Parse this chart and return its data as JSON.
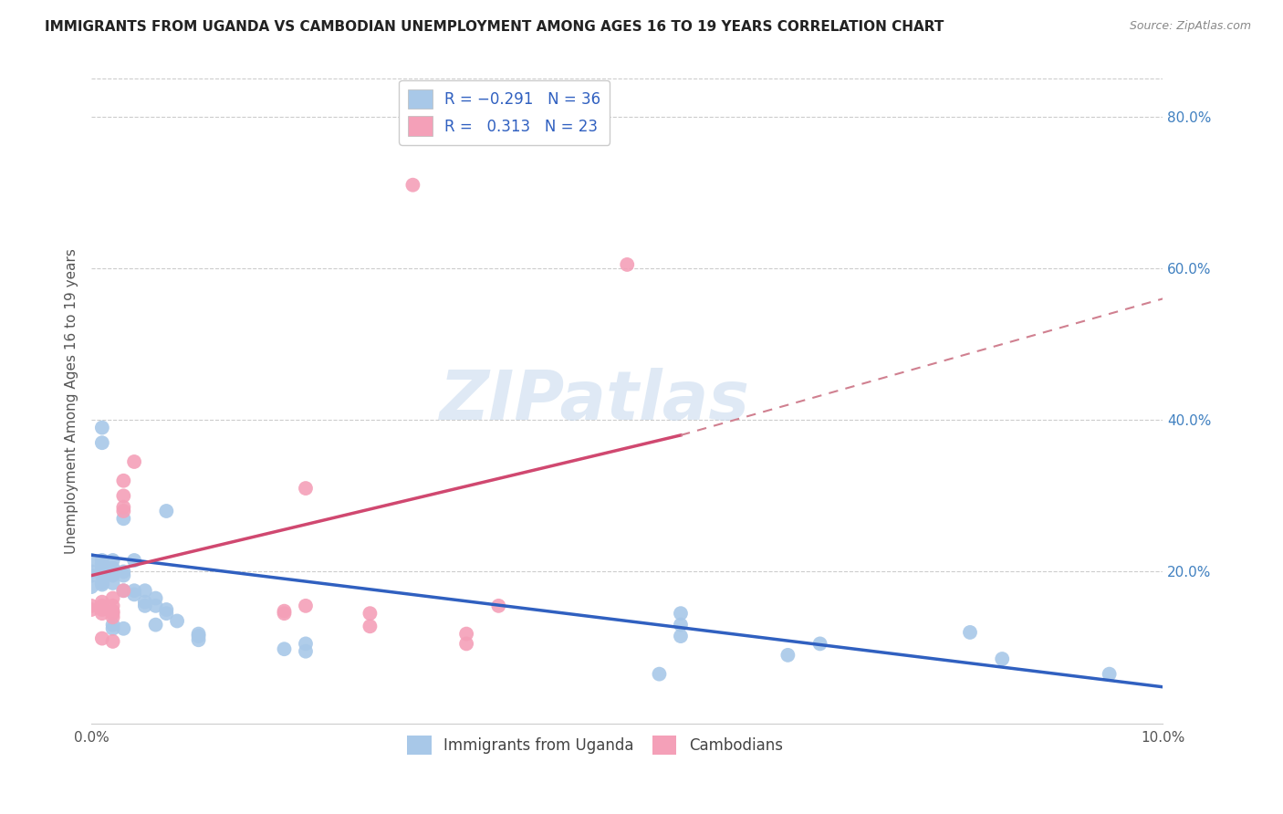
{
  "title": "IMMIGRANTS FROM UGANDA VS CAMBODIAN UNEMPLOYMENT AMONG AGES 16 TO 19 YEARS CORRELATION CHART",
  "source": "Source: ZipAtlas.com",
  "ylabel": "Unemployment Among Ages 16 to 19 years",
  "xlim": [
    0.0,
    0.1
  ],
  "ylim": [
    0.0,
    0.85
  ],
  "xticks": [
    0.0,
    0.02,
    0.04,
    0.06,
    0.08,
    0.1
  ],
  "xtick_labels": [
    "0.0%",
    "",
    "",
    "",
    "",
    "10.0%"
  ],
  "yticks_right": [
    0.2,
    0.4,
    0.6,
    0.8
  ],
  "ytick_labels_right": [
    "20.0%",
    "40.0%",
    "60.0%",
    "80.0%"
  ],
  "watermark": "ZIPatlas",
  "blue_color": "#A8C8E8",
  "pink_color": "#F4A0B8",
  "blue_line_color": "#3060C0",
  "pink_line_color": "#D04870",
  "pink_dash_color": "#D08090",
  "title_color": "#222222",
  "right_axis_color": "#4080C0",
  "grid_color": "#CCCCCC",
  "uganda_points": [
    [
      0.0,
      0.215
    ],
    [
      0.0,
      0.2
    ],
    [
      0.0,
      0.195
    ],
    [
      0.0,
      0.18
    ],
    [
      0.001,
      0.215
    ],
    [
      0.001,
      0.21
    ],
    [
      0.001,
      0.205
    ],
    [
      0.001,
      0.2
    ],
    [
      0.001,
      0.195
    ],
    [
      0.001,
      0.185
    ],
    [
      0.001,
      0.183
    ],
    [
      0.001,
      0.39
    ],
    [
      0.001,
      0.37
    ],
    [
      0.002,
      0.215
    ],
    [
      0.002,
      0.205
    ],
    [
      0.002,
      0.2
    ],
    [
      0.002,
      0.195
    ],
    [
      0.002,
      0.185
    ],
    [
      0.002,
      0.13
    ],
    [
      0.002,
      0.125
    ],
    [
      0.003,
      0.2
    ],
    [
      0.003,
      0.195
    ],
    [
      0.003,
      0.175
    ],
    [
      0.003,
      0.125
    ],
    [
      0.003,
      0.27
    ],
    [
      0.004,
      0.215
    ],
    [
      0.004,
      0.175
    ],
    [
      0.004,
      0.17
    ],
    [
      0.005,
      0.175
    ],
    [
      0.005,
      0.16
    ],
    [
      0.005,
      0.155
    ],
    [
      0.006,
      0.165
    ],
    [
      0.006,
      0.155
    ],
    [
      0.006,
      0.13
    ],
    [
      0.007,
      0.15
    ],
    [
      0.007,
      0.145
    ],
    [
      0.007,
      0.28
    ],
    [
      0.008,
      0.135
    ],
    [
      0.01,
      0.118
    ],
    [
      0.01,
      0.115
    ],
    [
      0.01,
      0.11
    ],
    [
      0.018,
      0.098
    ],
    [
      0.02,
      0.105
    ],
    [
      0.02,
      0.095
    ],
    [
      0.053,
      0.065
    ],
    [
      0.055,
      0.145
    ],
    [
      0.055,
      0.13
    ],
    [
      0.055,
      0.115
    ],
    [
      0.065,
      0.09
    ],
    [
      0.068,
      0.105
    ],
    [
      0.082,
      0.12
    ],
    [
      0.085,
      0.085
    ],
    [
      0.095,
      0.065
    ]
  ],
  "cambodian_points": [
    [
      0.0,
      0.155
    ],
    [
      0.0,
      0.15
    ],
    [
      0.001,
      0.16
    ],
    [
      0.001,
      0.155
    ],
    [
      0.001,
      0.15
    ],
    [
      0.001,
      0.145
    ],
    [
      0.001,
      0.112
    ],
    [
      0.002,
      0.165
    ],
    [
      0.002,
      0.155
    ],
    [
      0.002,
      0.148
    ],
    [
      0.002,
      0.145
    ],
    [
      0.002,
      0.14
    ],
    [
      0.002,
      0.108
    ],
    [
      0.003,
      0.32
    ],
    [
      0.003,
      0.3
    ],
    [
      0.003,
      0.285
    ],
    [
      0.003,
      0.28
    ],
    [
      0.003,
      0.175
    ],
    [
      0.004,
      0.345
    ],
    [
      0.018,
      0.148
    ],
    [
      0.018,
      0.145
    ],
    [
      0.02,
      0.31
    ],
    [
      0.02,
      0.155
    ],
    [
      0.026,
      0.145
    ],
    [
      0.026,
      0.128
    ],
    [
      0.03,
      0.71
    ],
    [
      0.035,
      0.118
    ],
    [
      0.035,
      0.105
    ],
    [
      0.038,
      0.155
    ],
    [
      0.05,
      0.605
    ]
  ],
  "blue_trendline": [
    [
      0.0,
      0.222
    ],
    [
      0.1,
      0.048
    ]
  ],
  "pink_trendline_solid": [
    [
      0.0,
      0.195
    ],
    [
      0.055,
      0.38
    ]
  ],
  "pink_trendline_dash": [
    [
      0.055,
      0.38
    ],
    [
      0.1,
      0.56
    ]
  ]
}
